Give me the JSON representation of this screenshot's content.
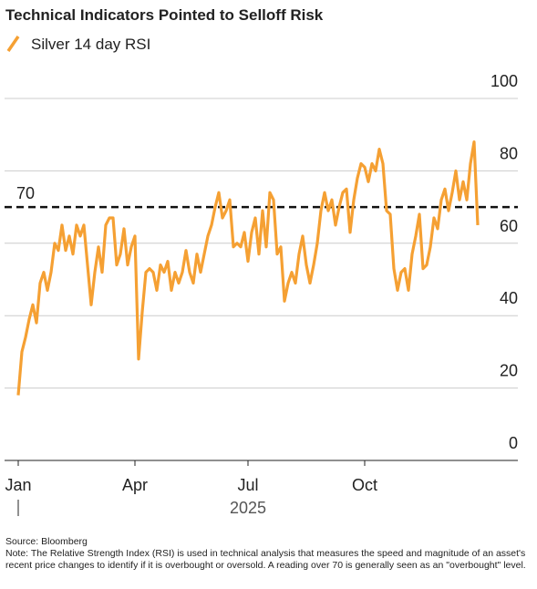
{
  "chart_data": {
    "type": "line",
    "title": "Technical Indicators Pointed to Selloff Risk",
    "x_axis_label": "2025",
    "source": "Source: Bloomberg",
    "note": "Note: The Relative Strength Index (RSI) is used in technical analysis that measures the speed and magnitude of an asset's recent price changes to identify if it is overbought or oversold. A reading over 70 is generally seen as an \"overbought\" level.",
    "reference_line": 70,
    "x": [
      0,
      2,
      4,
      6,
      8,
      10,
      12,
      14,
      16,
      18,
      20,
      22,
      24,
      26,
      28,
      30,
      32,
      34,
      36,
      38,
      40,
      42,
      44,
      46,
      48,
      50,
      52,
      54,
      56,
      58,
      60,
      62,
      64,
      66,
      68,
      70,
      72,
      74,
      76,
      78,
      80,
      82,
      84,
      86,
      88,
      90,
      92,
      94,
      96,
      98,
      100,
      102,
      104,
      106,
      108,
      110,
      112,
      114,
      116,
      118,
      120,
      122,
      124,
      126,
      128,
      130,
      132,
      134,
      136,
      138,
      140,
      142,
      144,
      146,
      148,
      150,
      152,
      154,
      156,
      158,
      160,
      162,
      164,
      166,
      168,
      170,
      172,
      174,
      176,
      178,
      180,
      182,
      184,
      186,
      188,
      190,
      192,
      194,
      196,
      198,
      200,
      202,
      204,
      206,
      208,
      210,
      212,
      214,
      216,
      218,
      220,
      222,
      224,
      226,
      228,
      230,
      232,
      234,
      236,
      238,
      240,
      242,
      244,
      246,
      248,
      250,
      252
    ],
    "series": [
      {
        "name": "Silver 14 day RSI",
        "color": "#f5a033",
        "values": [
          18,
          30,
          34,
          39,
          43,
          38,
          49,
          52,
          47,
          52,
          60,
          58,
          65,
          58,
          62,
          57,
          65,
          62,
          65,
          54,
          43,
          52,
          59,
          52,
          65,
          67,
          67,
          54,
          57,
          64,
          54,
          59,
          62,
          28,
          41,
          52,
          53,
          52,
          47,
          54,
          52,
          55,
          47,
          52,
          49,
          52,
          58,
          52,
          49,
          57,
          52,
          57,
          62,
          65,
          70,
          74,
          67,
          69,
          72,
          59,
          60,
          59,
          63,
          55,
          63,
          67,
          57,
          69,
          59,
          74,
          72,
          57,
          59,
          44,
          49,
          52,
          49,
          57,
          62,
          54,
          49,
          54,
          60,
          69,
          74,
          69,
          72,
          65,
          70,
          74,
          75,
          63,
          72,
          78,
          82,
          81,
          77,
          82,
          80,
          86,
          82,
          69,
          68,
          53,
          47,
          52,
          53,
          47,
          57,
          62,
          68,
          53,
          54,
          59,
          67,
          64,
          72,
          75,
          69,
          74,
          80,
          72,
          77,
          72,
          82,
          88,
          65
        ]
      }
    ],
    "xlim": [
      -7.5,
      274
    ],
    "xticks": [
      {
        "value": 0,
        "label": "Jan"
      },
      {
        "value": 64,
        "label": "Apr"
      },
      {
        "value": 126,
        "label": "Jul"
      },
      {
        "value": 190,
        "label": "Oct"
      }
    ],
    "ylim": [
      0,
      100
    ],
    "yticks": [
      0,
      20,
      40,
      60,
      80,
      100
    ],
    "grid": true
  }
}
